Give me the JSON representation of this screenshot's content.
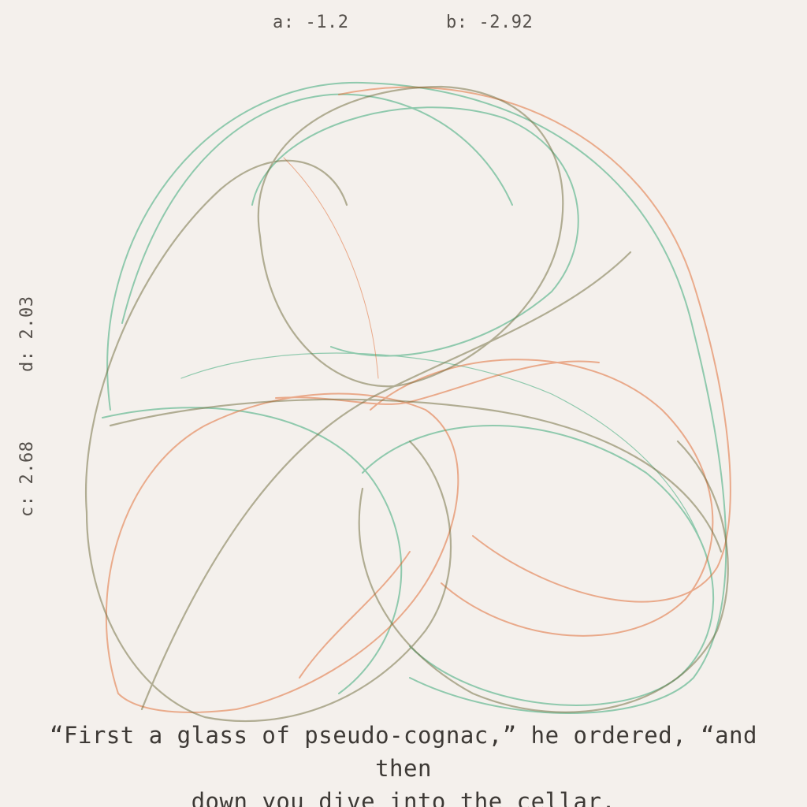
{
  "params": {
    "a": {
      "name": "a",
      "value": "-1.2"
    },
    "b": {
      "name": "b",
      "value": "-2.92"
    },
    "c": {
      "name": "c",
      "value": "2.68"
    },
    "d": {
      "name": "d",
      "value": "2.03"
    }
  },
  "caption": {
    "line1": "“First a glass of pseudo-cognac,” he ordered, “and then",
    "line2": "down you dive into the cellar."
  },
  "colors": {
    "background": "#f4f0ec",
    "green": "#3daa7a",
    "orange": "#e0652a",
    "olive": "#6e6a3a",
    "text": "#3d3935"
  }
}
